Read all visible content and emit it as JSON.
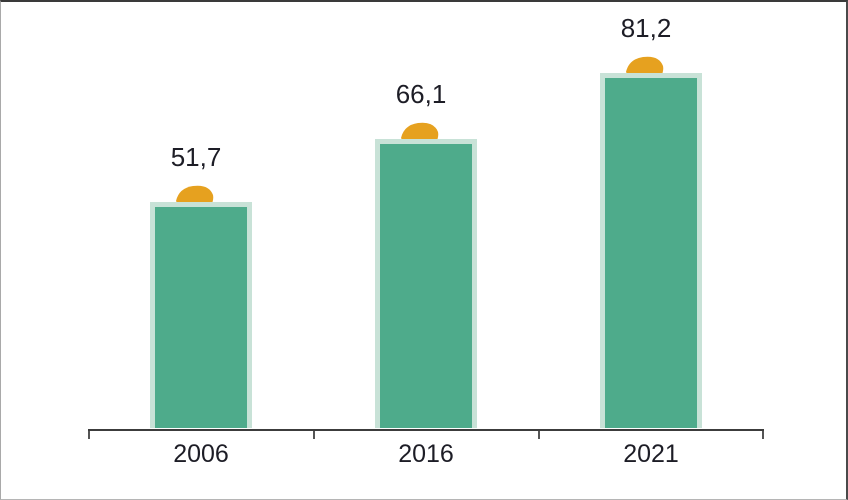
{
  "chart_data": {
    "type": "bar",
    "categories": [
      "2006",
      "2016",
      "2021"
    ],
    "values": [
      51.7,
      66.1,
      81.2
    ],
    "value_labels": [
      "51,7",
      "66,1",
      "81,2"
    ],
    "decimal_separator": ",",
    "grid": false,
    "legend": false,
    "marker": "leaf-icon",
    "orientation": "vertical"
  },
  "colors": {
    "bar_fill": "#4EAB8B",
    "bar_border": "#C8E2D7",
    "leaf": "#E6A11F",
    "axis": "#3C3C3C",
    "label_text": "#1D1D26",
    "background": "#FFFFFF"
  }
}
